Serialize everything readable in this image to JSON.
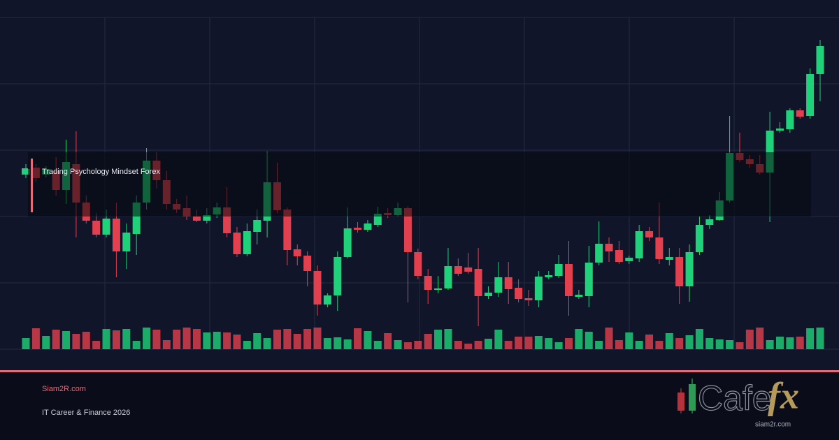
{
  "chart_data": {
    "type": "candlestick",
    "ylim": [
      0,
      475
    ],
    "volume_ylim": [
      0,
      100
    ],
    "up_color": "#1fd27a",
    "down_color": "#e2404f",
    "series": [
      {
        "name": "Trading Psychology Mindset Forex",
        "open": [
          250,
          260,
          250,
          255,
          228,
          265,
          210,
          184,
          164,
          187,
          140,
          165,
          210,
          270,
          242,
          208,
          202,
          190,
          184,
          193,
          203,
          167,
          136,
          168,
          184,
          239,
          200,
          143,
          134,
          112,
          64,
          77,
          132,
          174,
          171,
          178,
          195,
          192,
          202,
          139,
          105,
          85,
          87,
          119,
          117,
          115,
          76,
          81,
          103,
          88,
          73,
          70,
          103,
          105,
          122,
          75,
          76,
          124,
          151,
          142,
          126,
          130,
          169,
          160,
          128,
          132,
          90,
          139,
          178,
          185,
          213,
          281,
          272,
          265,
          253,
          313,
          315,
          342,
          334,
          394
        ],
        "high": [
          265,
          265,
          262,
          275,
          300,
          312,
          220,
          195,
          200,
          210,
          180,
          220,
          288,
          282,
          255,
          215,
          220,
          200,
          202,
          210,
          232,
          175,
          180,
          200,
          283,
          267,
          203,
          150,
          140,
          120,
          80,
          140,
          203,
          182,
          185,
          204,
          202,
          210,
          205,
          144,
          115,
          105,
          145,
          130,
          138,
          145,
          90,
          125,
          125,
          100,
          85,
          112,
          112,
          135,
          155,
          85,
          148,
          183,
          160,
          155,
          134,
          178,
          175,
          210,
          145,
          145,
          150,
          190,
          192,
          225,
          334,
          310,
          278,
          278,
          340,
          325,
          345,
          345,
          402,
          443
        ],
        "low": [
          245,
          240,
          246,
          220,
          208,
          160,
          180,
          160,
          160,
          103,
          115,
          135,
          200,
          230,
          200,
          195,
          185,
          182,
          180,
          188,
          160,
          132,
          133,
          150,
          160,
          195,
          120,
          120,
          90,
          48,
          60,
          55,
          130,
          167,
          168,
          175,
          188,
          190,
          67,
          100,
          65,
          80,
          85,
          105,
          108,
          33,
          72,
          75,
          65,
          67,
          62,
          60,
          100,
          102,
          48,
          72,
          60,
          120,
          125,
          122,
          122,
          125,
          155,
          122,
          120,
          65,
          68,
          135,
          172,
          184,
          210,
          268,
          260,
          250,
          182,
          310,
          310,
          330,
          330,
          355
        ],
        "close": [
          258,
          245,
          258,
          228,
          268,
          210,
          184,
          164,
          187,
          140,
          167,
          210,
          270,
          242,
          208,
          200,
          190,
          184,
          192,
          203,
          166,
          136,
          169,
          185,
          239,
          199,
          142,
          133,
          112,
          64,
          77,
          132,
          173,
          171,
          180,
          194,
          192,
          202,
          139,
          105,
          85,
          87,
          119,
          108,
          111,
          76,
          81,
          103,
          86,
          72,
          70,
          104,
          106,
          122,
          76,
          78,
          124,
          151,
          140,
          125,
          131,
          169,
          160,
          129,
          132,
          90,
          139,
          178,
          186,
          213,
          281,
          271,
          265,
          253,
          313,
          316,
          342,
          333,
          394,
          434
        ],
        "volume": [
          16,
          30,
          19,
          28,
          26,
          22,
          25,
          12,
          29,
          27,
          29,
          12,
          31,
          28,
          13,
          28,
          31,
          29,
          24,
          25,
          24,
          21,
          12,
          23,
          16,
          28,
          29,
          22,
          29,
          31,
          16,
          17,
          14,
          30,
          26,
          12,
          23,
          13,
          10,
          12,
          22,
          28,
          29,
          12,
          8,
          12,
          15,
          28,
          12,
          18,
          18,
          19,
          16,
          10,
          16,
          29,
          25,
          12,
          31,
          13,
          24,
          12,
          21,
          12,
          23,
          16,
          20,
          29,
          16,
          14,
          13,
          10,
          28,
          31,
          13,
          18,
          17,
          18,
          30,
          31
        ]
      }
    ]
  },
  "footer": {
    "site": "Siam2R.com",
    "tagline": "IT Career & Finance 2026"
  },
  "logo": {
    "word": "Cafe",
    "accent": "fx",
    "url": "siam2r.com"
  }
}
